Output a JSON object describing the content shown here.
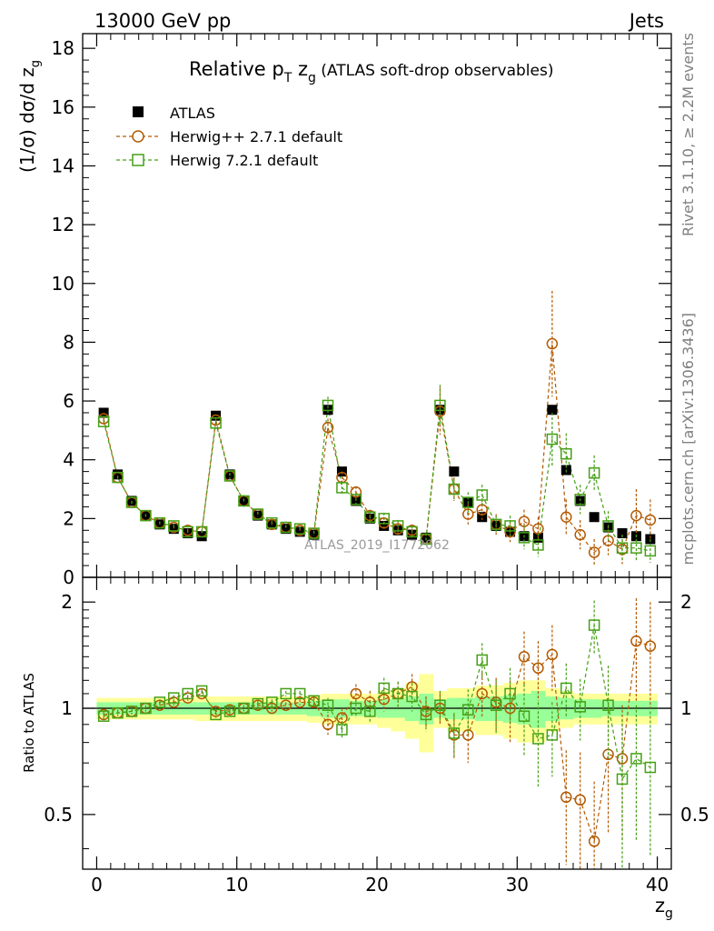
{
  "header": {
    "left": "13000 GeV pp",
    "right": "Jets"
  },
  "side_labels": {
    "rivet": "Rivet 3.1.10, ≥ 2.2M events",
    "mcplots": "mcplots.cern.ch [arXiv:1306.3436]"
  },
  "watermark": "ATLAS_2019_I1772062",
  "chart_data": [
    {
      "type": "line",
      "panel": "main",
      "title_main": "Relative p",
      "title_sub1": "T",
      "title_mid": " z",
      "title_sub2": "g",
      "title_tail": " (ATLAS soft-drop observables)",
      "ylabel": "(1/σ) dσ/d z",
      "ylabel_sub": "g",
      "xlim": [
        -1,
        41
      ],
      "ylim": [
        0,
        18.5
      ],
      "yticks": [
        0,
        2,
        4,
        6,
        8,
        10,
        12,
        14,
        16,
        18
      ],
      "ytick_labels": [
        "0",
        "2",
        "4",
        "6",
        "8",
        "10",
        "12",
        "14",
        "16",
        "18"
      ],
      "legend": [
        "ATLAS",
        "Herwig++ 2.7.1 default",
        "Herwig 7.2.1 default"
      ],
      "x": [
        0.5,
        1.5,
        2.5,
        3.5,
        4.5,
        5.5,
        6.5,
        7.5,
        8.5,
        9.5,
        10.5,
        11.5,
        12.5,
        13.5,
        14.5,
        15.5,
        16.5,
        17.5,
        18.5,
        19.5,
        20.5,
        21.5,
        22.5,
        23.5,
        24.5,
        25.5,
        26.5,
        27.5,
        28.5,
        29.5,
        30.5,
        31.5,
        32.5,
        33.5,
        34.5,
        35.5,
        36.5,
        37.5,
        38.5,
        39.5
      ],
      "series": [
        {
          "name": "ATLAS",
          "color": "#000000",
          "marker": "square-filled",
          "values": [
            5.6,
            3.5,
            2.6,
            2.1,
            1.8,
            1.65,
            1.5,
            1.4,
            5.5,
            3.5,
            2.6,
            2.1,
            1.8,
            1.65,
            1.55,
            1.45,
            5.7,
            3.6,
            2.6,
            2.0,
            1.75,
            1.6,
            1.45,
            1.35,
            5.7,
            3.6,
            2.55,
            2.05,
            1.75,
            1.55,
            1.4,
            1.35,
            5.7,
            3.65,
            2.6,
            2.05,
            1.7,
            1.5,
            1.4,
            1.3
          ]
        },
        {
          "name": "Herwig++ 2.7.1 default",
          "color": "#b35900",
          "marker": "circle-open",
          "values": [
            5.4,
            3.4,
            2.55,
            2.1,
            1.85,
            1.7,
            1.6,
            1.55,
            5.35,
            3.45,
            2.6,
            2.15,
            1.8,
            1.7,
            1.6,
            1.5,
            5.1,
            3.4,
            2.9,
            2.1,
            1.85,
            1.65,
            1.6,
            1.3,
            5.65,
            3.0,
            2.15,
            2.3,
            1.8,
            1.55,
            1.9,
            1.65,
            7.95,
            2.05,
            1.45,
            0.85,
            1.25,
            0.95,
            2.1,
            1.95
          ],
          "errors": [
            0.05,
            0.05,
            0.05,
            0.05,
            0.05,
            0.05,
            0.05,
            0.05,
            0.1,
            0.1,
            0.08,
            0.08,
            0.08,
            0.08,
            0.08,
            0.08,
            0.3,
            0.2,
            0.2,
            0.2,
            0.2,
            0.2,
            0.2,
            0.2,
            0.8,
            0.4,
            0.35,
            0.35,
            0.35,
            0.35,
            0.4,
            0.4,
            1.8,
            0.6,
            0.5,
            0.45,
            0.5,
            0.5,
            0.9,
            0.7
          ]
        },
        {
          "name": "Herwig 7.2.1 default",
          "color": "#44a015",
          "marker": "square-open",
          "values": [
            5.3,
            3.4,
            2.55,
            2.1,
            1.85,
            1.75,
            1.55,
            1.55,
            5.25,
            3.45,
            2.6,
            2.15,
            1.85,
            1.7,
            1.65,
            1.5,
            5.85,
            3.05,
            2.65,
            2.05,
            2.0,
            1.75,
            1.55,
            1.3,
            5.85,
            3.0,
            2.55,
            2.8,
            1.8,
            1.75,
            1.35,
            1.1,
            4.7,
            4.2,
            2.65,
            3.55,
            1.75,
            1.0,
            1.0,
            0.9
          ],
          "errors": [
            0.05,
            0.05,
            0.05,
            0.05,
            0.05,
            0.05,
            0.05,
            0.05,
            0.1,
            0.1,
            0.08,
            0.08,
            0.08,
            0.08,
            0.08,
            0.08,
            0.3,
            0.2,
            0.2,
            0.2,
            0.2,
            0.2,
            0.2,
            0.2,
            0.7,
            0.35,
            0.35,
            0.35,
            0.3,
            0.35,
            0.4,
            0.4,
            0.9,
            0.7,
            0.5,
            0.6,
            0.5,
            0.45,
            0.45,
            0.4
          ]
        }
      ]
    },
    {
      "type": "line",
      "panel": "ratio",
      "ylabel": "Ratio to ATLAS",
      "xlabel": "z",
      "xlabel_sub": "g",
      "xlim": [
        -1,
        41
      ],
      "ylim": [
        0.35,
        2.35
      ],
      "yscale": "log",
      "xticks": [
        0,
        10,
        20,
        30,
        40
      ],
      "xtick_labels": [
        "0",
        "10",
        "20",
        "30",
        "40"
      ],
      "yticks": [
        0.5,
        1,
        2
      ],
      "ytick_labels": [
        "0.5",
        "1",
        "2"
      ],
      "band_inner": [
        0.04,
        0.04,
        0.04,
        0.04,
        0.04,
        0.04,
        0.04,
        0.04,
        0.04,
        0.04,
        0.04,
        0.04,
        0.04,
        0.04,
        0.04,
        0.05,
        0.06,
        0.06,
        0.05,
        0.05,
        0.06,
        0.06,
        0.08,
        0.1,
        0.06,
        0.07,
        0.07,
        0.08,
        0.08,
        0.09,
        0.1,
        0.12,
        0.08,
        0.07,
        0.06,
        0.06,
        0.05,
        0.05,
        0.05,
        0.05
      ],
      "band_outer": [
        0.07,
        0.07,
        0.07,
        0.07,
        0.07,
        0.07,
        0.07,
        0.08,
        0.08,
        0.08,
        0.08,
        0.08,
        0.08,
        0.08,
        0.08,
        0.09,
        0.1,
        0.1,
        0.1,
        0.1,
        0.12,
        0.14,
        0.18,
        0.25,
        0.12,
        0.14,
        0.14,
        0.16,
        0.16,
        0.18,
        0.2,
        0.2,
        0.14,
        0.12,
        0.1,
        0.1,
        0.1,
        0.1,
        0.1,
        0.1
      ],
      "series": [
        {
          "name": "Herwig++ 2.7.1 default",
          "color": "#b35900",
          "values": [
            0.96,
            0.97,
            0.98,
            1.0,
            1.02,
            1.04,
            1.07,
            1.1,
            0.98,
            0.99,
            1.0,
            1.02,
            1.0,
            1.02,
            1.04,
            1.04,
            0.9,
            0.94,
            1.1,
            1.04,
            1.06,
            1.1,
            1.15,
            0.98,
            1.0,
            0.84,
            0.84,
            1.1,
            1.04,
            1.0,
            1.4,
            1.3,
            1.42,
            0.56,
            0.55,
            0.42,
            0.74,
            0.72,
            1.55,
            1.5
          ],
          "errors": [
            0.02,
            0.02,
            0.02,
            0.02,
            0.02,
            0.02,
            0.02,
            0.02,
            0.02,
            0.02,
            0.02,
            0.02,
            0.02,
            0.02,
            0.02,
            0.03,
            0.06,
            0.06,
            0.07,
            0.08,
            0.08,
            0.09,
            0.1,
            0.1,
            0.1,
            0.12,
            0.14,
            0.16,
            0.18,
            0.2,
            0.25,
            0.25,
            0.3,
            0.2,
            0.2,
            0.2,
            0.3,
            0.3,
            0.5,
            0.5
          ]
        },
        {
          "name": "Herwig 7.2.1 default",
          "color": "#44a015",
          "values": [
            0.95,
            0.97,
            0.98,
            1.0,
            1.04,
            1.07,
            1.1,
            1.12,
            0.96,
            0.98,
            1.0,
            1.03,
            1.04,
            1.1,
            1.1,
            1.05,
            1.02,
            0.87,
            1.0,
            0.98,
            1.14,
            1.1,
            1.08,
            0.96,
            1.02,
            0.85,
            0.99,
            1.37,
            1.02,
            1.1,
            0.95,
            0.82,
            0.84,
            1.14,
            1.01,
            1.72,
            1.02,
            0.63,
            0.72,
            0.68
          ],
          "errors": [
            0.02,
            0.02,
            0.02,
            0.02,
            0.02,
            0.02,
            0.02,
            0.02,
            0.02,
            0.02,
            0.02,
            0.02,
            0.02,
            0.02,
            0.02,
            0.03,
            0.05,
            0.05,
            0.06,
            0.07,
            0.08,
            0.09,
            0.1,
            0.1,
            0.1,
            0.12,
            0.14,
            0.16,
            0.18,
            0.2,
            0.22,
            0.22,
            0.2,
            0.2,
            0.2,
            0.3,
            0.3,
            0.3,
            0.3,
            0.3
          ]
        }
      ]
    }
  ]
}
